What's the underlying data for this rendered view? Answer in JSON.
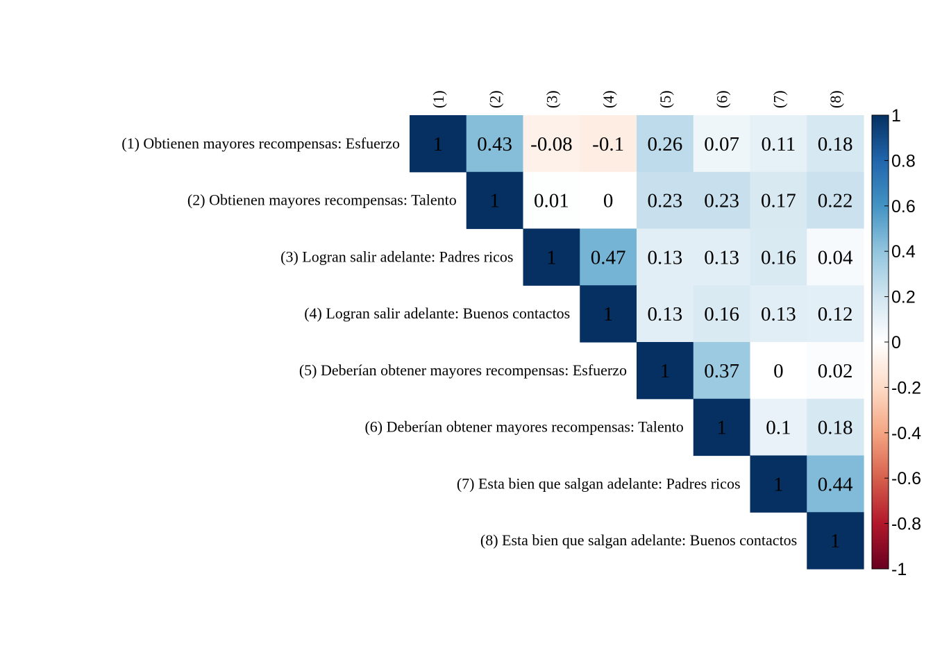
{
  "chart_data": {
    "type": "heatmap",
    "subtype": "correlation-upper-triangle",
    "title": "",
    "column_labels": [
      "(1)",
      "(2)",
      "(3)",
      "(4)",
      "(5)",
      "(6)",
      "(7)",
      "(8)"
    ],
    "row_labels": [
      "(1) Obtienen mayores recompensas: Esfuerzo",
      "(2) Obtienen mayores recompensas: Talento",
      "(3) Logran salir adelante: Padres ricos",
      "(4) Logran salir adelante: Buenos contactos",
      "(5) Deberían obtener mayores recompensas: Esfuerzo",
      "(6) Deberían obtener mayores recompensas: Talento",
      "(7) Esta bien que salgan adelante: Padres ricos",
      "(8) Esta bien que salgan adelante: Buenos contactos"
    ],
    "matrix": [
      [
        1,
        0.43,
        -0.08,
        -0.1,
        0.26,
        0.07,
        0.11,
        0.18
      ],
      [
        null,
        1,
        0.01,
        0,
        0.23,
        0.23,
        0.17,
        0.22
      ],
      [
        null,
        null,
        1,
        0.47,
        0.13,
        0.13,
        0.16,
        0.04
      ],
      [
        null,
        null,
        null,
        1,
        0.13,
        0.16,
        0.13,
        0.12
      ],
      [
        null,
        null,
        null,
        null,
        1,
        0.37,
        0,
        0.02
      ],
      [
        null,
        null,
        null,
        null,
        null,
        1,
        0.1,
        0.18
      ],
      [
        null,
        null,
        null,
        null,
        null,
        null,
        1,
        0.44
      ],
      [
        null,
        null,
        null,
        null,
        null,
        null,
        null,
        1
      ]
    ],
    "color_scale": {
      "min": -1,
      "max": 1,
      "ticks": [
        1,
        0.8,
        0.6,
        0.4,
        0.2,
        0,
        -0.2,
        -0.4,
        -0.6,
        -0.8,
        -1
      ],
      "tick_labels": [
        "1",
        "0.8",
        "0.6",
        "0.4",
        "0.2",
        "0",
        "-0.2",
        "-0.4",
        "-0.6",
        "-0.8",
        "-1"
      ],
      "palette": [
        "#67001F",
        "#B2182B",
        "#D6604D",
        "#F4A582",
        "#FDDBC7",
        "#FFFFFF",
        "#D1E5F0",
        "#92C5DE",
        "#4393C3",
        "#2166AC",
        "#053061"
      ]
    },
    "legend_position": "right"
  }
}
